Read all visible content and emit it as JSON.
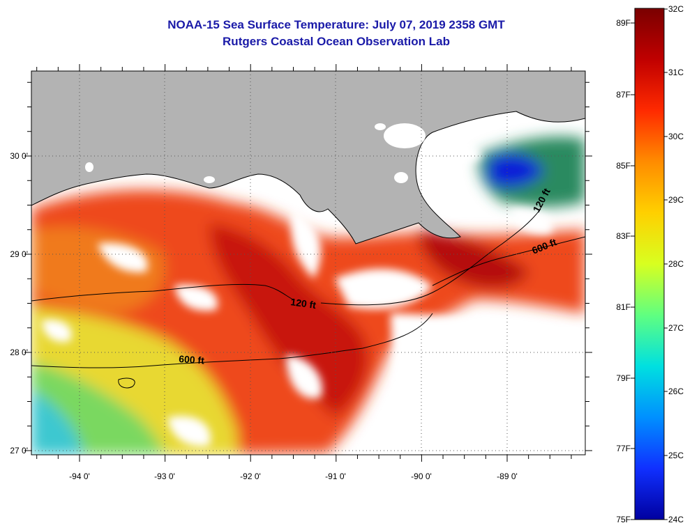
{
  "title": {
    "line1": "NOAA-15 Sea Surface Temperature:  July 07, 2019 2358 GMT",
    "line2": "Rutgers Coastal Ocean Observation Lab"
  },
  "map": {
    "lon_labels": [
      "-94 0'",
      "-93 0'",
      "-92 0'",
      "-91 0'",
      "-90 0'",
      "-89 0'"
    ],
    "lat_labels": [
      "30 0'",
      "29 0'",
      "28 0'",
      "27 0'"
    ],
    "contours": [
      "120 ft",
      "600 ft",
      "120 ft",
      "600 ft"
    ],
    "colors": {
      "land": "#b3b3b3",
      "cloud": "#ffffff",
      "warm": "#e63a16",
      "hot": "#b31010",
      "cool": "#6fd46a",
      "cold": "#0a1ad8"
    }
  },
  "colorbar": {
    "fahrenheit": [
      "89F",
      "87F",
      "85F",
      "83F",
      "81F",
      "79F",
      "77F",
      "75F"
    ],
    "celsius": [
      "32C",
      "31C",
      "30C",
      "29C",
      "28C",
      "27C",
      "26C",
      "25C",
      "24C"
    ],
    "stops": [
      "#7a0000",
      "#c00000",
      "#ff2a00",
      "#ff8c00",
      "#ffd000",
      "#d8ff20",
      "#60ff80",
      "#00e0e0",
      "#0090ff",
      "#1030ff",
      "#0000a0"
    ]
  }
}
